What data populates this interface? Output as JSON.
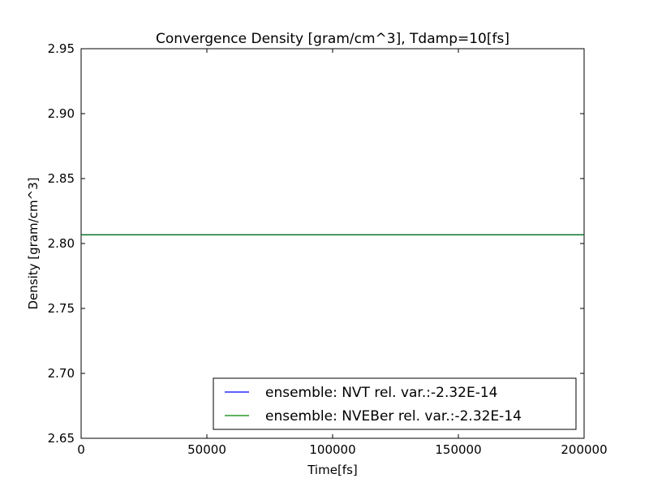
{
  "chart_data": {
    "type": "line",
    "title": "Convergence Density [gram/cm^3], Tdamp=10[fs]",
    "xlabel": "Time[fs]",
    "ylabel": "Density [gram/cm^3]",
    "xlim": [
      0,
      200000
    ],
    "ylim": [
      2.65,
      2.95
    ],
    "xticks": [
      0,
      50000,
      100000,
      150000,
      200000
    ],
    "xtick_labels": [
      "0",
      "50000",
      "100000",
      "150000",
      "200000"
    ],
    "yticks": [
      2.65,
      2.7,
      2.75,
      2.8,
      2.85,
      2.9,
      2.95
    ],
    "ytick_labels": [
      "2.65",
      "2.70",
      "2.75",
      "2.80",
      "2.85",
      "2.90",
      "2.95"
    ],
    "grid": false,
    "legend_position": "bottom-right",
    "series": [
      {
        "name": "ensemble: NVT rel. var.:-2.32E-14",
        "color": "#0000ff",
        "x": [
          0,
          200000
        ],
        "y": [
          2.8067,
          2.8067
        ]
      },
      {
        "name": "ensemble: NVEBer rel. var.:-2.32E-14",
        "color": "#008000",
        "x": [
          0,
          200000
        ],
        "y": [
          2.8067,
          2.8067
        ]
      }
    ]
  }
}
